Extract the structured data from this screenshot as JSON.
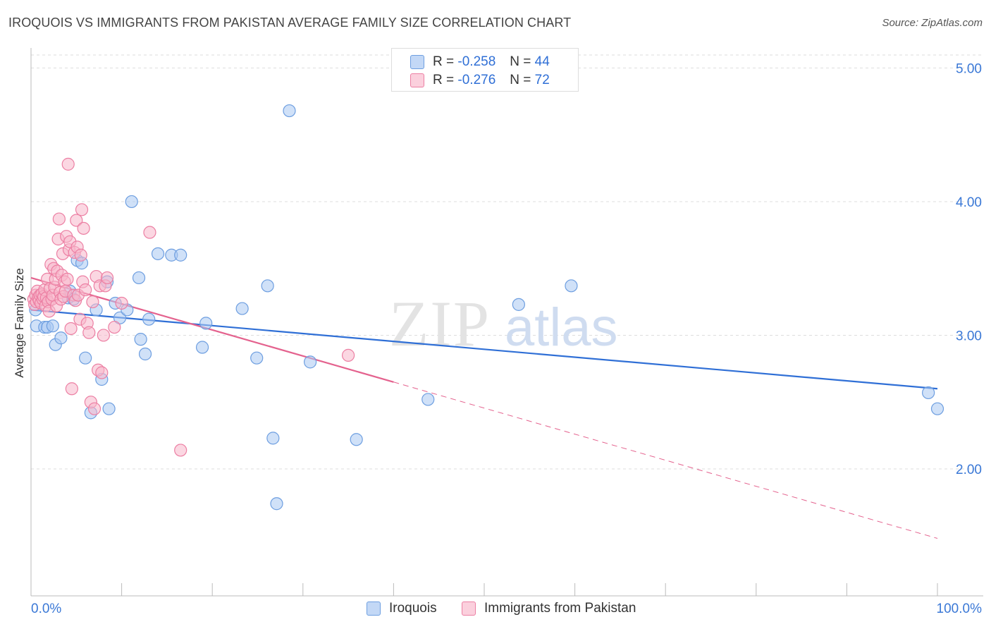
{
  "title": "IROQUOIS VS IMMIGRANTS FROM PAKISTAN AVERAGE FAMILY SIZE CORRELATION CHART",
  "source": "Source: ZipAtlas.com",
  "watermark": {
    "zip": "ZIP",
    "atlas": "atlas"
  },
  "colors": {
    "blue_fill": "#a9c8f2",
    "blue_stroke": "#6d9ee0",
    "blue_line": "#2f6fd6",
    "pink_fill": "#f7b6ca",
    "pink_stroke": "#ec7fa3",
    "pink_line": "#e4628e",
    "value_text": "#3a78d6",
    "grid": "#dddddd"
  },
  "stats": {
    "iroquois": {
      "r_label": "R =",
      "r_value": "-0.258",
      "n_label": "N =",
      "n_value": "44"
    },
    "pakistan": {
      "r_label": "R =",
      "r_value": "-0.276",
      "n_label": "N =",
      "n_value": "72"
    }
  },
  "legend": {
    "iroquois": "Iroquois",
    "pakistan": "Immigrants from Pakistan"
  },
  "chart_data": {
    "type": "scatter",
    "title": "IROQUOIS VS IMMIGRANTS FROM PAKISTAN AVERAGE FAMILY SIZE CORRELATION CHART",
    "xlabel": "",
    "ylabel": "Average Family Size",
    "xlim": [
      0,
      100
    ],
    "ylim": [
      1.05,
      5.15
    ],
    "x_tick_labels": [
      {
        "value": 0,
        "label": "0.0%"
      },
      {
        "value": 100,
        "label": "100.0%"
      }
    ],
    "y_ticks": [
      {
        "value": 2.0,
        "label": "2.00"
      },
      {
        "value": 3.0,
        "label": "3.00"
      },
      {
        "value": 4.0,
        "label": "4.00"
      },
      {
        "value": 5.0,
        "label": "5.00"
      }
    ],
    "grid": true,
    "legend_position": "bottom-center",
    "series": [
      {
        "name": "Iroquois",
        "trend": {
          "x0": 0,
          "y0": 3.19,
          "x1": 100,
          "y1": 2.6,
          "solid_to": 100
        },
        "points": [
          [
            0.5,
            3.19
          ],
          [
            0.6,
            3.07
          ],
          [
            1.5,
            3.06
          ],
          [
            1.8,
            3.06
          ],
          [
            2.4,
            3.07
          ],
          [
            2.7,
            2.93
          ],
          [
            3.3,
            2.98
          ],
          [
            4.1,
            3.28
          ],
          [
            4.3,
            3.33
          ],
          [
            4.7,
            3.27
          ],
          [
            5.1,
            3.56
          ],
          [
            5.6,
            3.54
          ],
          [
            6.0,
            2.83
          ],
          [
            6.6,
            2.42
          ],
          [
            7.2,
            3.19
          ],
          [
            7.8,
            2.67
          ],
          [
            8.4,
            3.4
          ],
          [
            8.6,
            2.45
          ],
          [
            9.3,
            3.24
          ],
          [
            9.8,
            3.13
          ],
          [
            10.6,
            3.19
          ],
          [
            11.1,
            4.0
          ],
          [
            11.9,
            3.43
          ],
          [
            12.1,
            2.97
          ],
          [
            12.6,
            2.86
          ],
          [
            13.0,
            3.12
          ],
          [
            14.0,
            3.61
          ],
          [
            15.5,
            3.6
          ],
          [
            16.5,
            3.6
          ],
          [
            18.9,
            2.91
          ],
          [
            19.3,
            3.09
          ],
          [
            23.3,
            3.2
          ],
          [
            24.9,
            2.83
          ],
          [
            26.1,
            3.37
          ],
          [
            26.7,
            2.23
          ],
          [
            27.1,
            1.74
          ],
          [
            28.5,
            4.68
          ],
          [
            30.8,
            2.8
          ],
          [
            35.9,
            2.22
          ],
          [
            43.8,
            2.52
          ],
          [
            53.8,
            3.23
          ],
          [
            59.6,
            3.37
          ],
          [
            99.0,
            2.57
          ],
          [
            100.0,
            2.45
          ]
        ]
      },
      {
        "name": "Immigrants from Pakistan",
        "trend": {
          "x0": 0,
          "y0": 3.43,
          "x1": 100,
          "y1": 1.48,
          "solid_to": 40
        },
        "points": [
          [
            0.3,
            3.27
          ],
          [
            0.4,
            3.23
          ],
          [
            0.5,
            3.3
          ],
          [
            0.6,
            3.25
          ],
          [
            0.7,
            3.33
          ],
          [
            0.8,
            3.28
          ],
          [
            0.9,
            3.26
          ],
          [
            1.0,
            3.3
          ],
          [
            1.1,
            3.24
          ],
          [
            1.2,
            3.31
          ],
          [
            1.3,
            3.27
          ],
          [
            1.4,
            3.29
          ],
          [
            1.5,
            3.34
          ],
          [
            1.6,
            3.22
          ],
          [
            1.7,
            3.28
          ],
          [
            1.8,
            3.42
          ],
          [
            1.9,
            3.25
          ],
          [
            2.0,
            3.18
          ],
          [
            2.1,
            3.35
          ],
          [
            2.2,
            3.53
          ],
          [
            2.3,
            3.27
          ],
          [
            2.4,
            3.3
          ],
          [
            2.5,
            3.5
          ],
          [
            2.6,
            3.36
          ],
          [
            2.7,
            3.42
          ],
          [
            2.8,
            3.22
          ],
          [
            2.9,
            3.48
          ],
          [
            3.0,
            3.72
          ],
          [
            3.1,
            3.87
          ],
          [
            3.2,
            3.32
          ],
          [
            3.3,
            3.27
          ],
          [
            3.4,
            3.45
          ],
          [
            3.5,
            3.61
          ],
          [
            3.6,
            3.29
          ],
          [
            3.7,
            3.4
          ],
          [
            3.8,
            3.33
          ],
          [
            3.9,
            3.74
          ],
          [
            4.0,
            3.42
          ],
          [
            4.1,
            4.28
          ],
          [
            4.2,
            3.64
          ],
          [
            4.3,
            3.7
          ],
          [
            4.4,
            3.05
          ],
          [
            4.5,
            2.6
          ],
          [
            4.7,
            3.3
          ],
          [
            4.8,
            3.62
          ],
          [
            4.9,
            3.26
          ],
          [
            5.0,
            3.86
          ],
          [
            5.1,
            3.66
          ],
          [
            5.2,
            3.3
          ],
          [
            5.4,
            3.12
          ],
          [
            5.5,
            3.6
          ],
          [
            5.6,
            3.94
          ],
          [
            5.7,
            3.4
          ],
          [
            5.8,
            3.8
          ],
          [
            6.0,
            3.34
          ],
          [
            6.2,
            3.09
          ],
          [
            6.4,
            3.02
          ],
          [
            6.6,
            2.5
          ],
          [
            6.8,
            3.25
          ],
          [
            7.0,
            2.45
          ],
          [
            7.2,
            3.44
          ],
          [
            7.4,
            2.74
          ],
          [
            7.6,
            3.37
          ],
          [
            7.8,
            2.72
          ],
          [
            8.0,
            3.0
          ],
          [
            8.2,
            3.37
          ],
          [
            8.4,
            3.43
          ],
          [
            9.2,
            3.06
          ],
          [
            10.0,
            3.24
          ],
          [
            13.1,
            3.77
          ],
          [
            16.5,
            2.14
          ],
          [
            35.0,
            2.85
          ]
        ]
      }
    ]
  }
}
